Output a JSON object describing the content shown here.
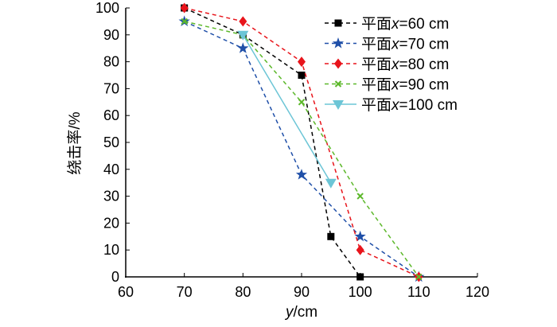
{
  "chart_data": {
    "type": "line",
    "title": "",
    "xlabel_italic": "y",
    "xlabel_unit": "/cm",
    "ylabel": "绕击率/%",
    "xlim": [
      60,
      120
    ],
    "ylim": [
      0,
      100
    ],
    "xticks": [
      60,
      70,
      80,
      90,
      100,
      110,
      120
    ],
    "yticks": [
      0,
      10,
      20,
      30,
      40,
      50,
      60,
      70,
      80,
      90,
      100
    ],
    "grid": false,
    "legend_position": "top-right",
    "series": [
      {
        "name_prefix": "平面",
        "name_var": "x",
        "name_suffix": "=60 cm",
        "color": "#000000",
        "marker": "square",
        "dashed": true,
        "x": [
          70,
          80,
          90,
          95,
          100
        ],
        "y": [
          100,
          90,
          75,
          15,
          0
        ]
      },
      {
        "name_prefix": "平面",
        "name_var": "x",
        "name_suffix": "=70 cm",
        "color": "#1f4fa8",
        "marker": "star",
        "dashed": true,
        "x": [
          70,
          80,
          90,
          100,
          110
        ],
        "y": [
          95,
          85,
          38,
          15,
          0
        ]
      },
      {
        "name_prefix": "平面",
        "name_var": "x",
        "name_suffix": "=80 cm",
        "color": "#e8141b",
        "marker": "diamond",
        "dashed": true,
        "x": [
          70,
          80,
          90,
          100,
          110
        ],
        "y": [
          100,
          95,
          80,
          10,
          0
        ]
      },
      {
        "name_prefix": "平面",
        "name_var": "x",
        "name_suffix": "=90 cm",
        "color": "#5cb82a",
        "marker": "x",
        "dashed": true,
        "x": [
          70,
          80,
          90,
          100,
          110
        ],
        "y": [
          95,
          90,
          65,
          30,
          0
        ]
      },
      {
        "name_prefix": "平面",
        "name_var": "x",
        "name_suffix": "=100 cm",
        "color": "#6cc5d6",
        "marker": "triangle-down",
        "dashed": false,
        "x": [
          80,
          95
        ],
        "y": [
          90,
          35
        ]
      }
    ]
  }
}
